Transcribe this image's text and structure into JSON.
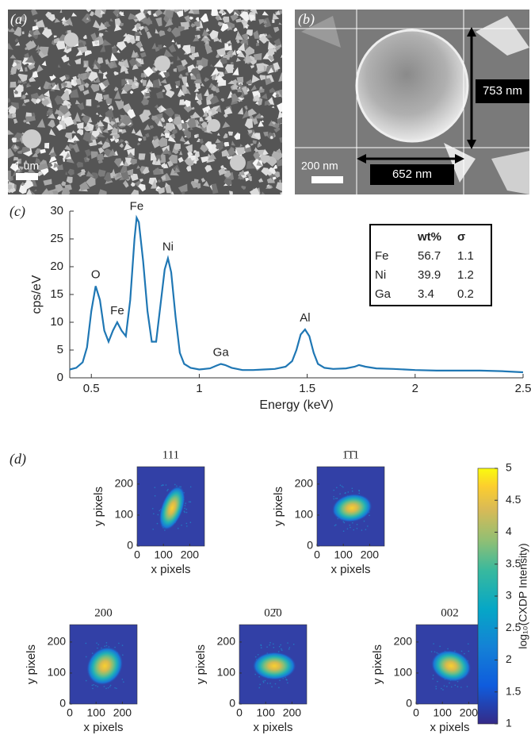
{
  "panel_a": {
    "label": "(a)",
    "scale_bar": "1 um"
  },
  "panel_b": {
    "label": "(b)",
    "scale_bar": "200 nm",
    "height_label": "753 nm",
    "width_label": "652 nm"
  },
  "panel_d": {
    "label": "(d)"
  },
  "chart_data": [
    {
      "type": "line",
      "panel_label": "(c)",
      "xlabel": "Energy (keV)",
      "ylabel": "cps/eV",
      "color": "#1f77b4",
      "xlim": [
        0.4,
        2.5
      ],
      "xticks": [
        0.5,
        1,
        1.5,
        2,
        2.5
      ],
      "ylim": [
        0,
        30
      ],
      "yticks": [
        0,
        5,
        10,
        15,
        20,
        25,
        30
      ],
      "x": [
        0.4,
        0.43,
        0.46,
        0.48,
        0.5,
        0.52,
        0.54,
        0.56,
        0.58,
        0.6,
        0.62,
        0.64,
        0.66,
        0.68,
        0.7,
        0.71,
        0.72,
        0.74,
        0.76,
        0.78,
        0.8,
        0.82,
        0.84,
        0.855,
        0.87,
        0.89,
        0.91,
        0.93,
        0.96,
        1.0,
        1.05,
        1.08,
        1.1,
        1.12,
        1.15,
        1.2,
        1.25,
        1.3,
        1.35,
        1.4,
        1.43,
        1.45,
        1.47,
        1.49,
        1.51,
        1.53,
        1.55,
        1.58,
        1.62,
        1.68,
        1.72,
        1.74,
        1.77,
        1.82,
        1.9,
        2.0,
        2.1,
        2.2,
        2.3,
        2.4,
        2.5
      ],
      "values": [
        1.5,
        1.8,
        2.8,
        5.5,
        12,
        16.5,
        14,
        8.5,
        6.5,
        8.5,
        10,
        8.5,
        7.5,
        14,
        25,
        28.8,
        28,
        21,
        12,
        6.5,
        6.5,
        13,
        19.5,
        21.5,
        19,
        11,
        4.5,
        2.5,
        1.8,
        1.5,
        1.7,
        2.2,
        2.5,
        2.3,
        1.8,
        1.4,
        1.4,
        1.5,
        1.6,
        2.0,
        3.0,
        5.0,
        7.8,
        8.7,
        7.5,
        4.5,
        2.5,
        1.8,
        1.6,
        1.7,
        2.0,
        2.3,
        2.0,
        1.7,
        1.6,
        1.4,
        1.3,
        1.3,
        1.3,
        1.2,
        1.0
      ],
      "annotations": [
        {
          "text": "O",
          "x": 0.52,
          "y": 16.5
        },
        {
          "text": "Fe",
          "x": 0.62,
          "y": 10
        },
        {
          "text": "Fe",
          "x": 0.71,
          "y": 28.8
        },
        {
          "text": "Ni",
          "x": 0.855,
          "y": 21.5
        },
        {
          "text": "Ga",
          "x": 1.1,
          "y": 2.5
        },
        {
          "text": "Al",
          "x": 1.49,
          "y": 8.7
        }
      ],
      "table": {
        "header": [
          "wt%",
          "σ"
        ],
        "rows": [
          [
            "Fe",
            56.7,
            1.1
          ],
          [
            "Ni",
            39.9,
            1.2
          ],
          [
            "Ga",
            3.4,
            0.2
          ]
        ]
      }
    },
    {
      "type": "heatmap",
      "title": "111",
      "xlabel": "x pixels",
      "ylabel": "y pixels",
      "xlim": [
        0,
        256
      ],
      "ylim": [
        0,
        256
      ],
      "xticks": [
        0,
        100,
        200
      ],
      "yticks": [
        0,
        100,
        200
      ]
    },
    {
      "type": "heatmap",
      "title": "1̄1̄1",
      "xlabel": "x pixels",
      "ylabel": "y pixels",
      "xlim": [
        0,
        256
      ],
      "ylim": [
        0,
        256
      ],
      "xticks": [
        0,
        100,
        200
      ],
      "yticks": [
        0,
        100,
        200
      ]
    },
    {
      "type": "heatmap",
      "title": "200",
      "xlabel": "x pixels",
      "ylabel": "y pixels",
      "xlim": [
        0,
        256
      ],
      "ylim": [
        0,
        256
      ],
      "xticks": [
        0,
        100,
        200
      ],
      "yticks": [
        0,
        100,
        200
      ]
    },
    {
      "type": "heatmap",
      "title": "02̄0",
      "xlabel": "x pixels",
      "ylabel": "y pixels",
      "xlim": [
        0,
        256
      ],
      "ylim": [
        0,
        256
      ],
      "xticks": [
        0,
        100,
        200
      ],
      "yticks": [
        0,
        100,
        200
      ]
    },
    {
      "type": "heatmap",
      "title": "002",
      "xlabel": "x pixels",
      "ylabel": "y pixels",
      "xlim": [
        0,
        256
      ],
      "ylim": [
        0,
        256
      ],
      "xticks": [
        0,
        100,
        200
      ],
      "yticks": [
        0,
        100,
        200
      ]
    },
    {
      "type": "colorbar",
      "label": "log₁₀(CXDP Intensity)",
      "ylim": [
        1,
        5
      ],
      "yticks": [
        1,
        1.5,
        2,
        2.5,
        3,
        3.5,
        4,
        4.5,
        5
      ]
    }
  ]
}
